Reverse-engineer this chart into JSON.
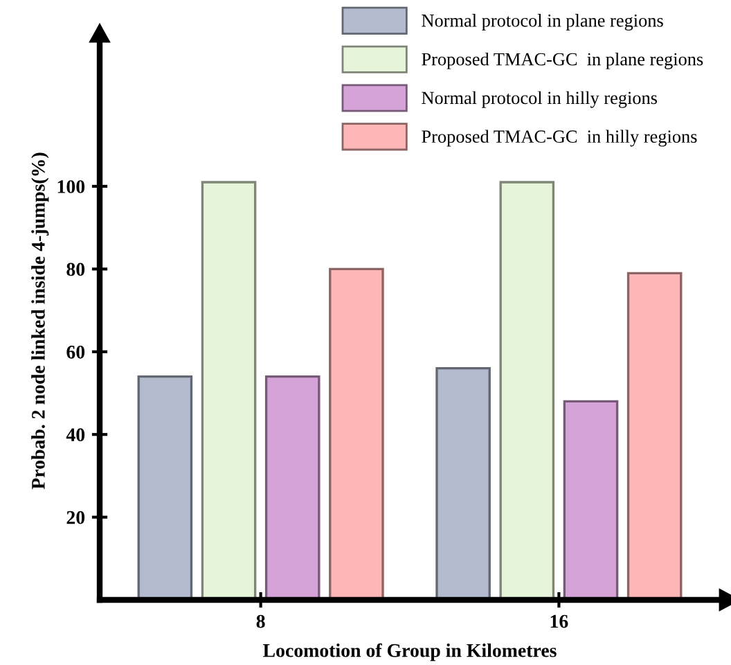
{
  "chart_data": {
    "type": "bar",
    "xlabel": "Locomotion of Group in Kilometres",
    "ylabel": "Probab. 2 node linked inside 4-jumps(%)",
    "categories": [
      "8",
      "16"
    ],
    "series": [
      {
        "name": "Normal protocol in plane regions",
        "color": "#b3bccf",
        "values": [
          54,
          56
        ]
      },
      {
        "name": "Proposed TMAC-GC  in plane regions",
        "color": "#e6f4da",
        "values": [
          101,
          101
        ]
      },
      {
        "name": "Normal protocol in hilly regions",
        "color": "#d6a3d8",
        "values": [
          54,
          48
        ]
      },
      {
        "name": "Proposed TMAC-GC  in hilly regions",
        "color": "#ffb6b6",
        "values": [
          80,
          79
        ]
      }
    ],
    "ylim": [
      0,
      135
    ],
    "yticks": [
      20,
      40,
      60,
      80,
      100
    ],
    "grid": false,
    "legend": "top right"
  }
}
